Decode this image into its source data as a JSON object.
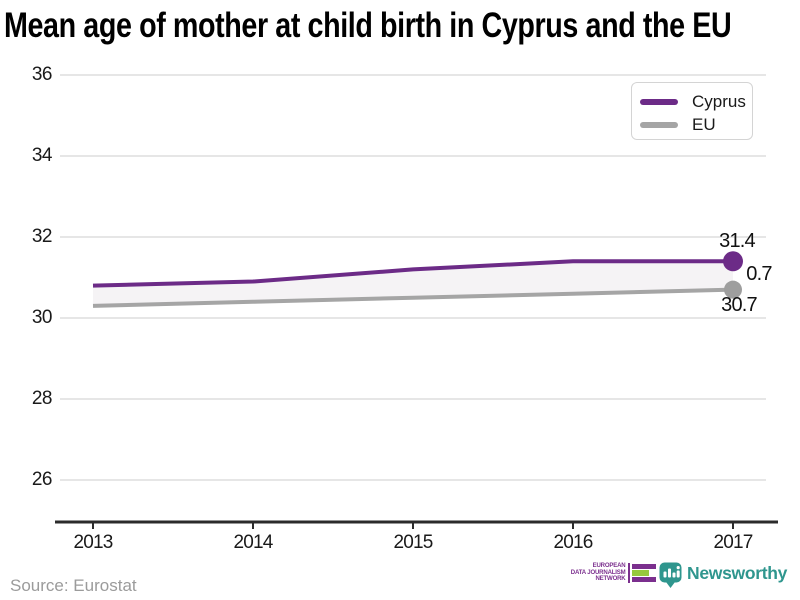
{
  "title": "Mean age of mother at child birth in Cyprus and the EU",
  "source": "Source: Eurostat",
  "chart_data": {
    "type": "line",
    "x": [
      2013,
      2014,
      2015,
      2016,
      2017
    ],
    "x_ticks": [
      "2013",
      "2014",
      "2015",
      "2016",
      "2017"
    ],
    "y_ticks": [
      "36",
      "34",
      "32",
      "30",
      "28",
      "26"
    ],
    "ylim": [
      25,
      36.5
    ],
    "grid": true,
    "legend_position": "top-right",
    "series": [
      {
        "name": "Cyprus",
        "color": "#6c2b87",
        "values": [
          30.8,
          30.9,
          31.2,
          31.4,
          31.4
        ]
      },
      {
        "name": "EU",
        "color": "#a5a5a5",
        "values": [
          30.3,
          30.4,
          30.5,
          30.6,
          30.7
        ]
      }
    ],
    "end_labels": {
      "cyprus": "31.4",
      "gap": "0.7",
      "eu": "30.7"
    },
    "area_between_fill": "#f5f3f5",
    "gridline_color": "#dedede",
    "axis_color": "#2b2b2b"
  },
  "legend": {
    "items": [
      {
        "label": "Cyprus",
        "color": "#6c2b87"
      },
      {
        "label": "EU",
        "color": "#a5a5a5"
      }
    ]
  },
  "footer": {
    "edjn": {
      "lines": [
        "EUROPEAN",
        "DATA JOURNALISM",
        "NETWORK"
      ],
      "purple": "#7b2f8e",
      "green": "#96c93d"
    },
    "newsworthy": {
      "label": "Newsworthy",
      "color": "#2f968e"
    }
  }
}
